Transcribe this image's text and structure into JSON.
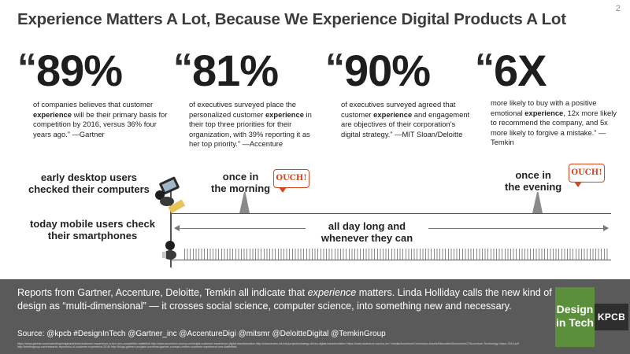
{
  "page_number": "2",
  "title": "Experience Matters A Lot, Because We Experience Digital Products A Lot",
  "stats": [
    {
      "value": "89%",
      "pre": "of companies believes that customer ",
      "keyword": "experience",
      "post": " will be their primary basis for competition by 2016, versus 36% four years ago.” —Gartner"
    },
    {
      "value": "81%",
      "pre": "of executives surveyed place the personalized customer ",
      "keyword": "experience",
      "post": " in their top three priorities for their organization, with 39% reporting it as her top priority.” —Accenture"
    },
    {
      "value": "90%",
      "pre": "of executives surveyed agreed that customer ",
      "keyword": "experience",
      "post": " and engagement are objectives of their corporation’s digital strategy.” —MIT Sloan/Deloitte"
    },
    {
      "value": "6X",
      "pre": "more likely to buy with a positive emotional ",
      "keyword": "experience",
      "post": ", 12x more likely to recommend the company, and 5x more likely to forgive a mistake.” —Temkin"
    }
  ],
  "quote_mark": "“",
  "timeline": {
    "desktop_label_1": "early desktop users",
    "desktop_label_2": "checked their computers",
    "mobile_label_1": "today mobile users check",
    "mobile_label_2": "their smartphones",
    "morning_1": "once in",
    "morning_2": "the morning",
    "evening_1": "once in",
    "evening_2": "the evening",
    "allday_1": "all day long and",
    "allday_2": "whenever they can",
    "ouch": "OUCH!"
  },
  "footer": {
    "body_1": "Reports from Gartner, Accenture, Deloitte, Temkin all indicate that ",
    "body_em": "experience",
    "body_2": " matters. Linda Holliday calls the new kind of design as “multi-dimensional” — it crosses social science, computer science, into something new and necessary.",
    "source": "Source: @kpcb #DesignInTech @Gartner_inc @AccentureDigi @mitsmr @DeloitteDigital @TemkinGroup",
    "links": "https://www.gartner.com/marketing/insights/articles/customer-experience-is-the-new-competitive-battlefield  http://www.accenture.com/us-en/insight-customer-experience-digital-transformation  http://sloanreview.mit.edu/projects/strategy-drives-digital-transformation/  https://www.accenture.com/us-en/~/media/Accenture/Conversion-Assets/Microsites/Documents17/Accenture-Technology-Vision-2014.pdf  http://temkingroup.com/research-reports/roi-of-customer-experience-2016/  http://blogs.gartner.com/jake-sorofman/gartner-surveys-confirm-customer-experience-new-battlefield"
  },
  "logo": {
    "design_line1": "Design",
    "design_line2": "in Tech",
    "kpcb": "KPCB",
    "green": "#5b8f3b",
    "dark": "#2e2e2e"
  },
  "colors": {
    "ouch": "#d6461f",
    "footer_bg": "#5a5a5a"
  }
}
